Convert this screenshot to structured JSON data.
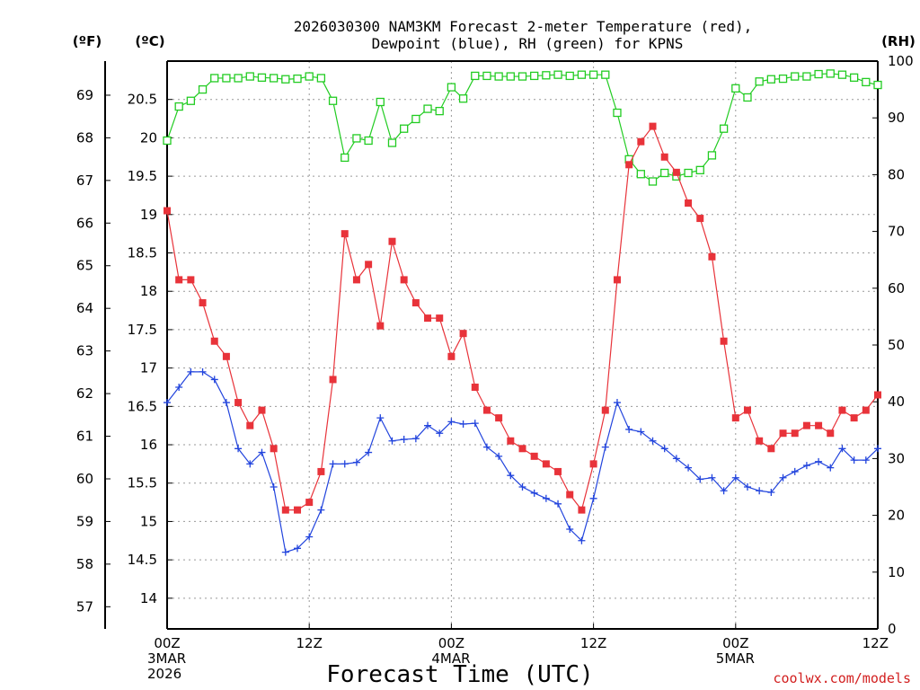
{
  "chart_data": {
    "type": "line",
    "title_line1": "2026030300 NAM3KM Forecast 2-meter Temperature (red),",
    "title_line2": "Dewpoint (blue), RH (green) for KPNS",
    "xlabel": "Forecast Time (UTC)",
    "credit": "coolwx.com/models",
    "unit_f": "(ºF)",
    "unit_c": "(ºC)",
    "unit_rh": "(RH)",
    "f_ticks": [
      "57",
      "58",
      "59",
      "60",
      "61",
      "62",
      "63",
      "64",
      "65",
      "66",
      "67",
      "68",
      "69"
    ],
    "c_ticks": [
      "14",
      "14.5",
      "15",
      "15.5",
      "16",
      "16.5",
      "17",
      "17.5",
      "18",
      "18.5",
      "19",
      "19.5",
      "20",
      "20.5"
    ],
    "rh_ticks": [
      "0",
      "10",
      "20",
      "30",
      "40",
      "50",
      "60",
      "70",
      "80",
      "90",
      "100"
    ],
    "x_ticks": [
      {
        "hour": 0,
        "label": "00Z",
        "sub1": "3MAR",
        "sub2": "2026"
      },
      {
        "hour": 12,
        "label": "12Z",
        "sub1": "",
        "sub2": ""
      },
      {
        "hour": 24,
        "label": "00Z",
        "sub1": "4MAR",
        "sub2": ""
      },
      {
        "hour": 36,
        "label": "12Z",
        "sub1": "",
        "sub2": ""
      },
      {
        "hour": 48,
        "label": "00Z",
        "sub1": "5MAR",
        "sub2": ""
      },
      {
        "hour": 60,
        "label": "12Z",
        "sub1": "",
        "sub2": ""
      }
    ],
    "x_range_hours": [
      0,
      60
    ],
    "ylim_c": [
      13.6,
      21.0
    ],
    "ylim_rh": [
      0,
      100
    ],
    "temperature_c": [
      19.05,
      18.15,
      18.15,
      17.85,
      17.35,
      17.15,
      16.55,
      16.25,
      16.45,
      15.95,
      15.15,
      15.15,
      15.25,
      15.65,
      16.85,
      18.75,
      18.15,
      18.35,
      17.55,
      18.65,
      18.15,
      17.85,
      17.65,
      17.65,
      17.15,
      17.45,
      16.75,
      16.45,
      16.35,
      16.05,
      15.95,
      15.85,
      15.75,
      15.65,
      15.35,
      15.15,
      15.75,
      16.45,
      18.15,
      19.65,
      19.95,
      20.15,
      19.75,
      19.55,
      19.15,
      18.95,
      18.45,
      17.35,
      16.35,
      16.45,
      16.05,
      15.95,
      16.15,
      16.15,
      16.25,
      16.25,
      16.15,
      16.45,
      16.35,
      16.45,
      16.65
    ],
    "dewpoint_c": [
      16.55,
      16.75,
      16.95,
      16.95,
      16.85,
      16.55,
      15.95,
      15.75,
      15.9,
      15.45,
      14.6,
      14.65,
      14.8,
      15.15,
      15.75,
      15.75,
      15.77,
      15.9,
      16.35,
      16.05,
      16.07,
      16.08,
      16.25,
      16.15,
      16.3,
      16.27,
      16.28,
      15.97,
      15.85,
      15.6,
      15.45,
      15.37,
      15.3,
      15.23,
      14.9,
      14.75,
      15.3,
      15.97,
      16.55,
      16.2,
      16.17,
      16.05,
      15.95,
      15.82,
      15.7,
      15.55,
      15.57,
      15.4,
      15.57,
      15.45,
      15.4,
      15.38,
      15.57,
      15.65,
      15.73,
      15.78,
      15.7,
      15.95,
      15.8,
      15.8,
      15.95
    ],
    "rh_percent": [
      86,
      92,
      93,
      95,
      97,
      97,
      97,
      97.3,
      97.1,
      97,
      96.8,
      96.9,
      97.3,
      97,
      93,
      83,
      86.4,
      86,
      92.8,
      85.6,
      88.1,
      89.8,
      91.6,
      91.2,
      95.4,
      93.4,
      97.4,
      97.4,
      97.3,
      97.3,
      97.3,
      97.4,
      97.5,
      97.6,
      97.4,
      97.6,
      97.6,
      97.6,
      90.9,
      82.7,
      80.1,
      78.8,
      80.3,
      79.7,
      80.3,
      80.8,
      83.4,
      88.1,
      95.2,
      93.6,
      96.4,
      96.8,
      96.9,
      97.3,
      97.3,
      97.7,
      97.8,
      97.6,
      97.1,
      96.3,
      95.8
    ]
  }
}
